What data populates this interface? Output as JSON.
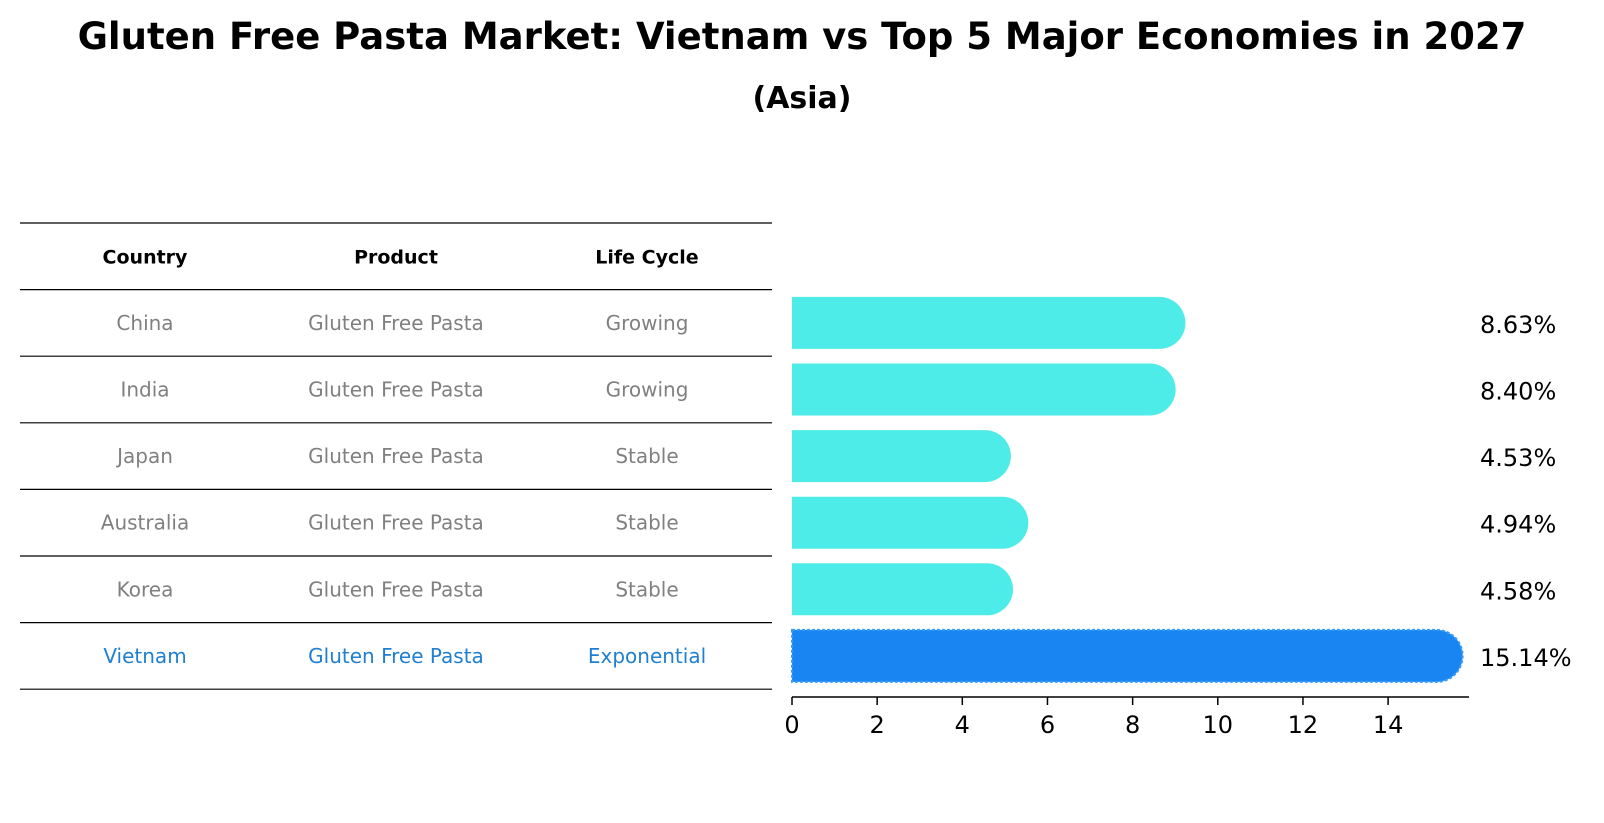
{
  "title": "Gluten Free Pasta Market: Vietnam vs Top 5 Major Economies in 2027",
  "subtitle": "(Asia)",
  "table": {
    "headers": [
      "Country",
      "Product",
      "Life Cycle"
    ],
    "rows": [
      {
        "country": "China",
        "product": "Gluten Free Pasta",
        "life_cycle": "Growing",
        "highlight": false
      },
      {
        "country": "India",
        "product": "Gluten Free Pasta",
        "life_cycle": "Growing",
        "highlight": false
      },
      {
        "country": "Japan",
        "product": "Gluten Free Pasta",
        "life_cycle": "Stable",
        "highlight": false
      },
      {
        "country": "Australia",
        "product": "Gluten Free Pasta",
        "life_cycle": "Stable",
        "highlight": false
      },
      {
        "country": "Korea",
        "product": "Gluten Free Pasta",
        "life_cycle": "Stable",
        "highlight": false
      },
      {
        "country": "Vietnam",
        "product": "Gluten Free Pasta",
        "life_cycle": "Exponential",
        "highlight": true
      }
    ]
  },
  "colors": {
    "bar": "#4dece8",
    "highlight_bar": "#1985f2",
    "highlight_text": "#1f7fd0",
    "muted_text": "#808080",
    "text": "#000000"
  },
  "chart_data": {
    "type": "bar",
    "orientation": "horizontal",
    "categories": [
      "China",
      "India",
      "Japan",
      "Australia",
      "Korea",
      "Vietnam"
    ],
    "values": [
      8.63,
      8.4,
      4.53,
      4.94,
      4.58,
      15.14
    ],
    "value_labels": [
      "8.63%",
      "8.40%",
      "4.53%",
      "4.94%",
      "4.58%",
      "15.14%"
    ],
    "xlim": [
      0,
      15.9
    ],
    "xticks": [
      0,
      2,
      4,
      6,
      8,
      10,
      12,
      14
    ],
    "grid": false,
    "legend": "none"
  }
}
